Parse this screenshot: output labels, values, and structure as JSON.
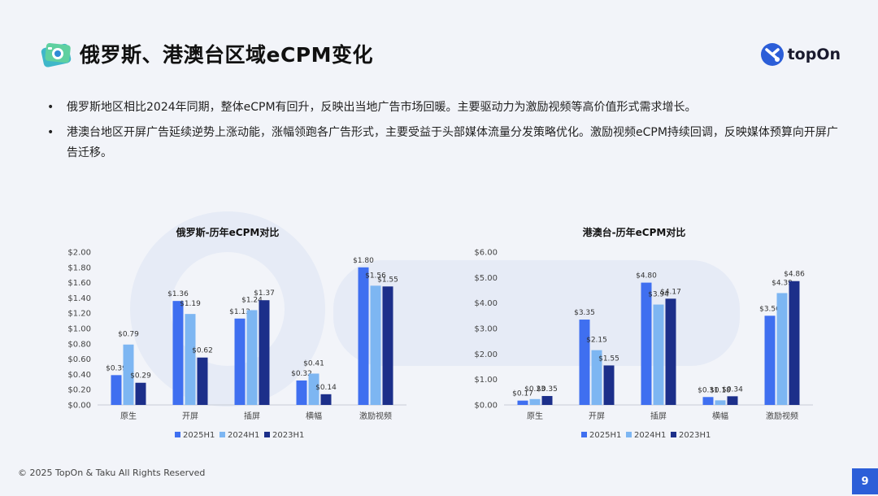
{
  "header": {
    "title": "俄罗斯、港澳台区域eCPM变化",
    "brand": "topOn"
  },
  "bullets": [
    "俄罗斯地区相比2024年同期，整体eCPM有回升，反映出当地广告市场回暖。主要驱动力为激励视频等高价值形式需求增长。",
    "港澳台地区开屏广告延续逆势上涨动能，涨幅领跑各广告形式，主要受益于头部媒体流量分发策略优化。激励视频eCPM持续回调，反映媒体预算向开屏广告迁移。"
  ],
  "footer": {
    "copyright": "© 2025 TopOn & Taku All Rights Reserved",
    "page_number": "9"
  },
  "colors": {
    "accent": "#2c5ed8",
    "series": [
      "#3f6ff0",
      "#7db6f2",
      "#1c2f8a"
    ],
    "text": "#222222"
  },
  "chart_data": [
    {
      "type": "bar",
      "title": "俄罗斯-历年eCPM对比",
      "categories": [
        "原生",
        "开屏",
        "插屏",
        "横幅",
        "激励视频"
      ],
      "series": [
        {
          "name": "2025H1",
          "values": [
            0.39,
            1.36,
            1.13,
            0.32,
            1.8
          ]
        },
        {
          "name": "2024H1",
          "values": [
            0.79,
            1.19,
            1.24,
            0.41,
            1.56
          ]
        },
        {
          "name": "2023H1",
          "values": [
            0.29,
            0.62,
            1.37,
            0.14,
            1.55
          ]
        }
      ],
      "ylim": [
        0,
        2.0
      ],
      "yticks": [
        "$0.00",
        "$0.20",
        "$0.40",
        "$0.60",
        "$0.80",
        "$1.00",
        "$1.20",
        "$1.40",
        "$1.60",
        "$1.80",
        "$2.00"
      ],
      "data_labels": [
        [
          "$0.39",
          "$1.36",
          "$1.13",
          "$0.32",
          "$1.80"
        ],
        [
          "$0.79",
          "$1.19",
          "$1.24",
          "$0.41",
          "$1.56"
        ],
        [
          "$0.29",
          "$0.62",
          "$1.37",
          "$0.14",
          "$1.55"
        ]
      ],
      "legend": "bottom",
      "grid": false
    },
    {
      "type": "bar",
      "title": "港澳台-历年eCPM对比",
      "categories": [
        "原生",
        "开屏",
        "插屏",
        "横幅",
        "激励视频"
      ],
      "series": [
        {
          "name": "2025H1",
          "values": [
            0.17,
            3.35,
            4.8,
            0.31,
            3.5
          ]
        },
        {
          "name": "2024H1",
          "values": [
            0.23,
            2.15,
            3.94,
            0.18,
            4.39
          ]
        },
        {
          "name": "2023H1",
          "values": [
            0.35,
            1.55,
            4.17,
            0.34,
            4.86
          ]
        }
      ],
      "ylim": [
        0,
        6.0
      ],
      "yticks": [
        "$0.00",
        "$1.00",
        "$2.00",
        "$3.00",
        "$4.00",
        "$5.00",
        "$6.00"
      ],
      "data_labels": [
        [
          "$0.17",
          "$3.35",
          "$4.80",
          "$0.31",
          "$3.50"
        ],
        [
          "$0.23",
          "$2.15",
          "$3.94",
          "$0.18",
          "$4.39"
        ],
        [
          "$0.35",
          "$1.55",
          "$4.17",
          "$0.34",
          "$4.86"
        ]
      ],
      "legend": "bottom",
      "grid": false
    }
  ]
}
